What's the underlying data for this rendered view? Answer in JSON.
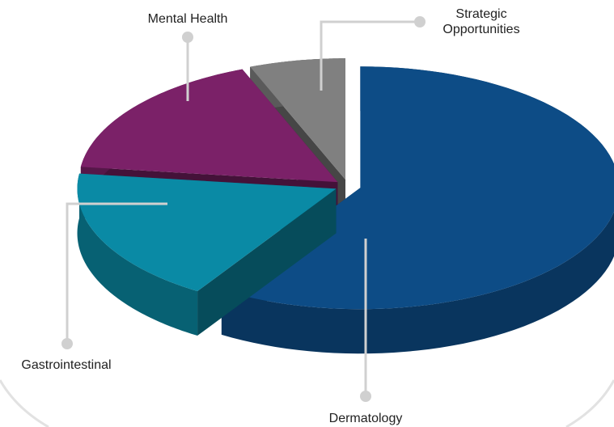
{
  "chart_data": {
    "type": "pie",
    "categories": [
      "Dermatology",
      "Gastrointestinal",
      "Mental Health",
      "Strategic Opportunities"
    ],
    "values": [
      59,
      18,
      17,
      6
    ],
    "colors": [
      "#0d4c86",
      "#0a8aa5",
      "#7b2168",
      "#808080"
    ]
  }
}
